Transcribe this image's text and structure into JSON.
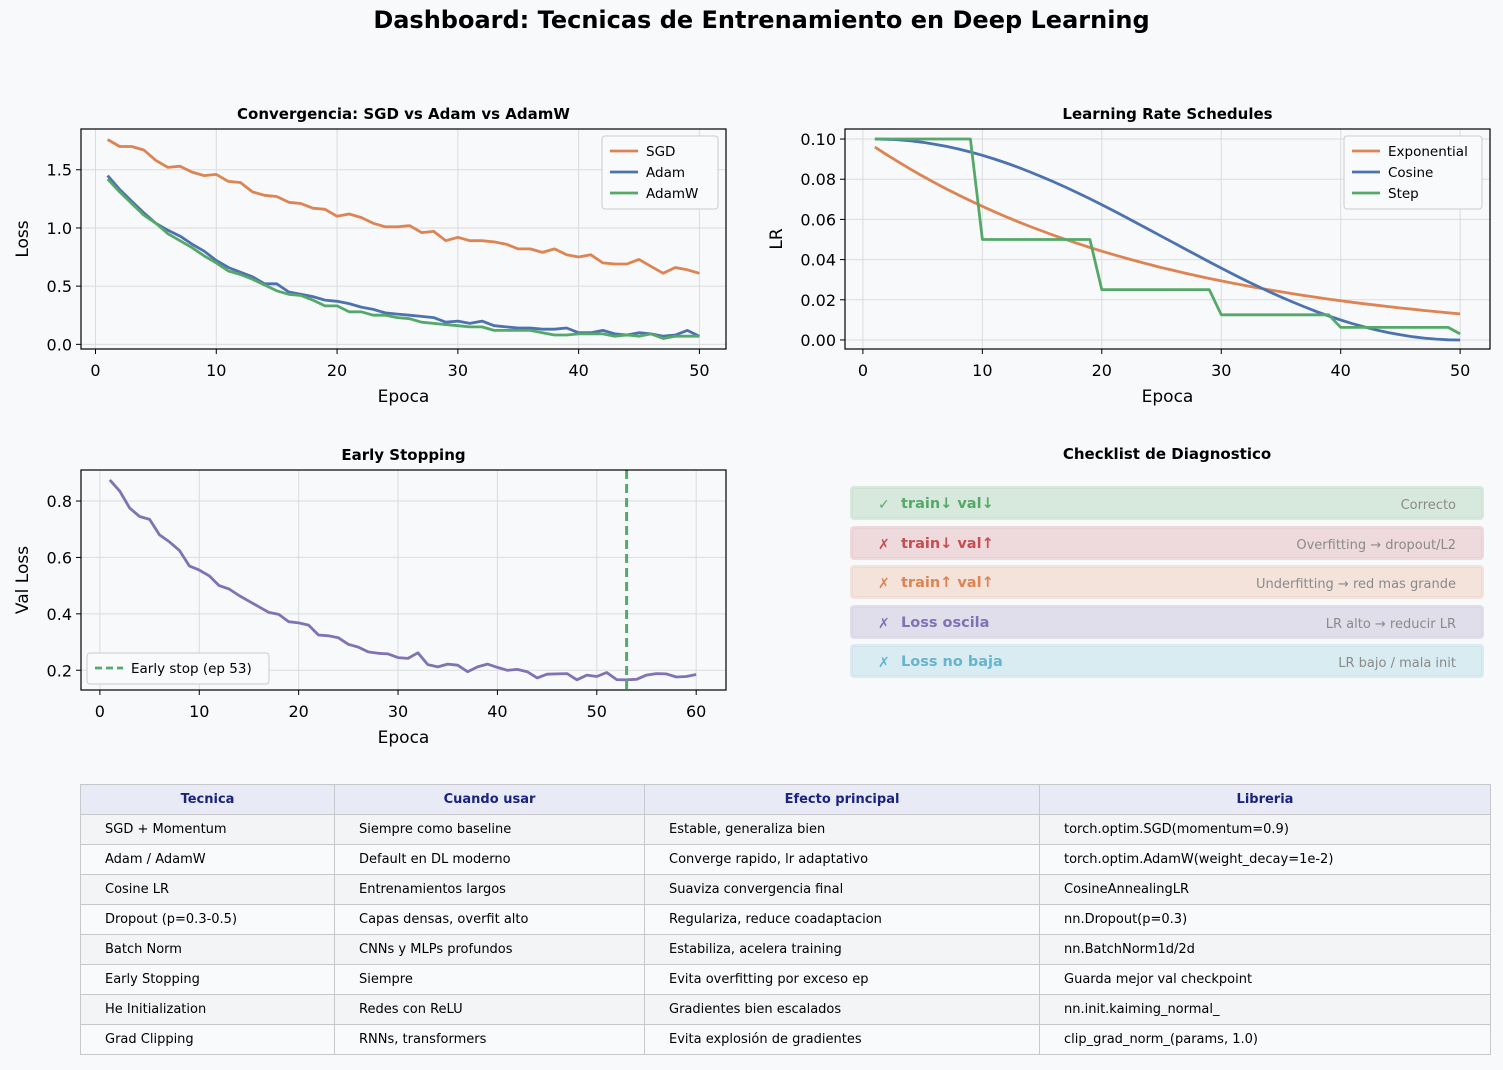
{
  "title": "Dashboard: Tecnicas de Entrenamiento en Deep Learning",
  "colors": {
    "orange": "#dd8452",
    "blue": "#4c72b0",
    "green": "#55a868",
    "purple": "#8172b3",
    "red": "#c44e52",
    "cyan": "#64b5cd"
  },
  "chart_data": [
    {
      "type": "line",
      "title": "Convergencia: SGD vs Adam vs AdamW",
      "xlabel": "Epoca",
      "ylabel": "Loss",
      "xlim": [
        -1.2,
        52.2
      ],
      "ylim": [
        -0.04,
        1.85
      ],
      "xticks": [
        0,
        10,
        20,
        30,
        40,
        50
      ],
      "yticks": [
        0.0,
        0.5,
        1.0,
        1.5
      ],
      "ytick_labels": [
        "0.0",
        "0.5",
        "1.0",
        "1.5"
      ],
      "legend": "top-right",
      "grid": true,
      "series": [
        {
          "name": "SGD",
          "color": "#dd8452",
          "x_start": 1,
          "values": [
            1.76,
            1.7,
            1.7,
            1.67,
            1.58,
            1.52,
            1.53,
            1.48,
            1.45,
            1.46,
            1.4,
            1.39,
            1.31,
            1.28,
            1.27,
            1.22,
            1.21,
            1.17,
            1.16,
            1.1,
            1.12,
            1.09,
            1.04,
            1.01,
            1.01,
            1.02,
            0.96,
            0.97,
            0.89,
            0.92,
            0.89,
            0.89,
            0.88,
            0.86,
            0.82,
            0.82,
            0.79,
            0.82,
            0.77,
            0.75,
            0.77,
            0.7,
            0.69,
            0.69,
            0.73,
            0.67,
            0.61,
            0.66,
            0.64,
            0.61
          ]
        },
        {
          "name": "Adam",
          "color": "#4c72b0",
          "x_start": 1,
          "values": [
            1.45,
            1.33,
            1.23,
            1.13,
            1.04,
            0.98,
            0.93,
            0.86,
            0.8,
            0.72,
            0.66,
            0.62,
            0.58,
            0.52,
            0.52,
            0.45,
            0.43,
            0.41,
            0.38,
            0.37,
            0.35,
            0.32,
            0.3,
            0.27,
            0.26,
            0.25,
            0.24,
            0.23,
            0.19,
            0.2,
            0.18,
            0.2,
            0.16,
            0.15,
            0.14,
            0.14,
            0.13,
            0.13,
            0.14,
            0.1,
            0.1,
            0.12,
            0.09,
            0.08,
            0.1,
            0.09,
            0.07,
            0.08,
            0.12,
            0.07
          ]
        },
        {
          "name": "AdamW",
          "color": "#55a868",
          "x_start": 1,
          "values": [
            1.42,
            1.31,
            1.21,
            1.11,
            1.04,
            0.95,
            0.89,
            0.83,
            0.76,
            0.7,
            0.63,
            0.6,
            0.56,
            0.51,
            0.46,
            0.43,
            0.42,
            0.38,
            0.33,
            0.33,
            0.28,
            0.28,
            0.25,
            0.25,
            0.23,
            0.22,
            0.19,
            0.18,
            0.17,
            0.16,
            0.15,
            0.15,
            0.12,
            0.12,
            0.12,
            0.12,
            0.1,
            0.08,
            0.08,
            0.09,
            0.09,
            0.09,
            0.07,
            0.08,
            0.07,
            0.09,
            0.05,
            0.07,
            0.07,
            0.07
          ]
        }
      ]
    },
    {
      "type": "line",
      "title": "Learning Rate Schedules",
      "xlabel": "Epoca",
      "ylabel": "LR",
      "xlim": [
        -1.5,
        52.5
      ],
      "ylim": [
        -0.0045,
        0.105
      ],
      "xticks": [
        0,
        10,
        20,
        30,
        40,
        50
      ],
      "yticks": [
        0.0,
        0.02,
        0.04,
        0.06,
        0.08,
        0.1
      ],
      "ytick_labels": [
        "0.00",
        "0.02",
        "0.04",
        "0.06",
        "0.08",
        "0.10"
      ],
      "legend": "top-right",
      "grid": true,
      "series": [
        {
          "name": "Exponential",
          "color": "#dd8452",
          "x_start": 1,
          "formula": "exponential",
          "start": 0.096,
          "decay": 0.96
        },
        {
          "name": "Cosine",
          "color": "#4c72b0",
          "x_start": 1,
          "formula": "cosine",
          "max": 0.1,
          "length": 50
        },
        {
          "name": "Step",
          "color": "#55a868",
          "x_start": 1,
          "formula": "step",
          "start": 0.1,
          "step_size": 10,
          "gamma": 0.5
        }
      ]
    },
    {
      "type": "line",
      "title": "Early Stopping",
      "xlabel": "Epoca",
      "ylabel": "Val Loss",
      "xlim": [
        -1.9,
        63.0
      ],
      "ylim": [
        0.13,
        0.91
      ],
      "xticks": [
        0,
        10,
        20,
        30,
        40,
        50,
        60
      ],
      "yticks": [
        0.2,
        0.4,
        0.6,
        0.8
      ],
      "ytick_labels": [
        "0.2",
        "0.4",
        "0.6",
        "0.8"
      ],
      "legend": "bottom-left",
      "grid": true,
      "series": [
        {
          "name": "",
          "color": "#8172b3",
          "x_start": 1,
          "values": [
            0.875,
            0.835,
            0.775,
            0.745,
            0.735,
            0.68,
            0.655,
            0.625,
            0.57,
            0.555,
            0.535,
            0.5,
            0.488,
            0.465,
            0.445,
            0.425,
            0.405,
            0.398,
            0.372,
            0.368,
            0.36,
            0.325,
            0.322,
            0.315,
            0.292,
            0.282,
            0.265,
            0.26,
            0.258,
            0.245,
            0.242,
            0.262,
            0.22,
            0.212,
            0.222,
            0.218,
            0.195,
            0.212,
            0.222,
            0.21,
            0.2,
            0.203,
            0.195,
            0.173,
            0.186,
            0.187,
            0.188,
            0.166,
            0.183,
            0.178,
            0.192,
            0.167,
            0.166,
            0.168,
            0.183,
            0.188,
            0.187,
            0.176,
            0.178,
            0.185
          ]
        }
      ],
      "early_stop": {
        "epoch": 53,
        "label": "Early stop (ep 53)",
        "color": "#55a868"
      }
    }
  ],
  "checklist": {
    "title": "Checklist de Diagnostico",
    "items": [
      {
        "mark": "✓",
        "label": "train↓ val↓",
        "result": "Correcto",
        "color": "#55a868",
        "bg": "#d6e9dc"
      },
      {
        "mark": "✗",
        "label": "train↓ val↑",
        "result": "Overfitting → dropout/L2",
        "color": "#c44e52",
        "bg": "#eed9dc"
      },
      {
        "mark": "✗",
        "label": "train↑ val↑",
        "result": "Underfitting → red mas grande",
        "color": "#dd8452",
        "bg": "#f4e3db"
      },
      {
        "mark": "✗",
        "label": "Loss oscila",
        "result": "LR alto → reducir LR",
        "color": "#8172b3",
        "bg": "#e0deea"
      },
      {
        "mark": "✗",
        "label": "Loss no baja",
        "result": "LR bajo / mala init",
        "color": "#64b5cd",
        "bg": "#d9ecf2"
      }
    ]
  },
  "table": {
    "headers": [
      "Tecnica",
      "Cuando usar",
      "Efecto principal",
      "Libreria"
    ],
    "rows": [
      [
        "SGD + Momentum",
        "Siempre como baseline",
        "Estable, generaliza bien",
        "torch.optim.SGD(momentum=0.9)"
      ],
      [
        "Adam / AdamW",
        "Default en DL moderno",
        "Converge rapido, lr adaptativo",
        "torch.optim.AdamW(weight_decay=1e-2)"
      ],
      [
        "Cosine LR",
        "Entrenamientos largos",
        "Suaviza convergencia final",
        "CosineAnnealingLR"
      ],
      [
        "Dropout (p=0.3-0.5)",
        "Capas densas, overfit alto",
        "Regulariza, reduce coadaptacion",
        "nn.Dropout(p=0.3)"
      ],
      [
        "Batch Norm",
        "CNNs y MLPs profundos",
        "Estabiliza, acelera training",
        "nn.BatchNorm1d/2d"
      ],
      [
        "Early Stopping",
        "Siempre",
        "Evita overfitting por exceso ep",
        "Guarda mejor val checkpoint"
      ],
      [
        "He Initialization",
        "Redes con ReLU",
        "Gradientes bien escalados",
        "nn.init.kaiming_normal_"
      ],
      [
        "Grad Clipping",
        "RNNs, transformers",
        "Evita explosión de gradientes",
        "clip_grad_norm_(params, 1.0)"
      ]
    ]
  }
}
